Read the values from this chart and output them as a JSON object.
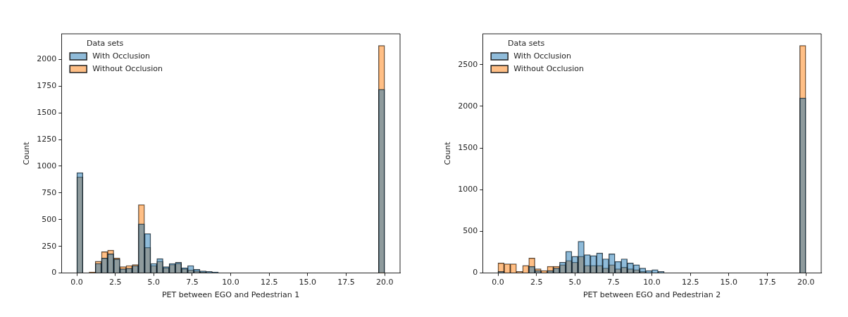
{
  "chart_data": [
    {
      "type": "histogram",
      "xlabel": "PET between EGO and Pedestrian 1",
      "ylabel": "Count",
      "legend_title": "Data sets",
      "legend": "top left",
      "grid": false,
      "bins": [
        0,
        0.4,
        0.8,
        1.2,
        1.6,
        2.0,
        2.4,
        2.8,
        3.2,
        3.6,
        4.0,
        4.4,
        4.8,
        5.2,
        5.6,
        6.0,
        6.4,
        6.8,
        7.2,
        7.6,
        8.0,
        8.4,
        8.8,
        9.2,
        9.6,
        10.0,
        10.4,
        10.8,
        11.2,
        11.6,
        12.0,
        12.4,
        12.8,
        13.2,
        13.6,
        14.0,
        14.4,
        14.8,
        15.2,
        15.6,
        16.0,
        16.4,
        16.8,
        17.2,
        17.6,
        18.0,
        18.4,
        18.8,
        19.2,
        19.6,
        20.0
      ],
      "series": [
        {
          "name": "With Occlusion",
          "color": "#1f77b4",
          "values": [
            940,
            0,
            0,
            90,
            140,
            180,
            130,
            40,
            45,
            70,
            460,
            370,
            90,
            135,
            60,
            90,
            100,
            50,
            70,
            35,
            20,
            15,
            10,
            0,
            0,
            0,
            0,
            0,
            0,
            0,
            0,
            0,
            0,
            0,
            0,
            0,
            0,
            0,
            0,
            0,
            0,
            0,
            0,
            0,
            0,
            0,
            0,
            0,
            0,
            1720
          ]
        },
        {
          "name": "Without Occlusion",
          "color": "#ff7f0e",
          "values": [
            900,
            0,
            10,
            110,
            200,
            215,
            140,
            60,
            70,
            80,
            640,
            240,
            70,
            110,
            50,
            80,
            90,
            40,
            30,
            20,
            10,
            0,
            0,
            0,
            0,
            0,
            0,
            0,
            0,
            0,
            0,
            0,
            0,
            0,
            0,
            0,
            0,
            0,
            0,
            0,
            0,
            0,
            0,
            0,
            0,
            0,
            0,
            0,
            0,
            2130
          ]
        }
      ],
      "xlim": [
        -1,
        21
      ],
      "xticks": [
        {
          "value": 0,
          "label": "0.0"
        },
        {
          "value": 2.5,
          "label": "2.5"
        },
        {
          "value": 5,
          "label": "5.0"
        },
        {
          "value": 7.5,
          "label": "7.5"
        },
        {
          "value": 10,
          "label": "10.0"
        },
        {
          "value": 12.5,
          "label": "12.5"
        },
        {
          "value": 15,
          "label": "15.0"
        },
        {
          "value": 17.5,
          "label": "17.5"
        },
        {
          "value": 20,
          "label": "20.0"
        }
      ],
      "ylim": [
        0,
        2240
      ],
      "yticks": [
        0,
        250,
        500,
        750,
        1000,
        1250,
        1500,
        1750,
        2000
      ]
    },
    {
      "type": "histogram",
      "xlabel": "PET between EGO and Pedestrian 2",
      "ylabel": "Count",
      "legend_title": "Data sets",
      "legend": "top left",
      "grid": false,
      "bins": [
        0,
        0.4,
        0.8,
        1.2,
        1.6,
        2.0,
        2.4,
        2.8,
        3.2,
        3.6,
        4.0,
        4.4,
        4.8,
        5.2,
        5.6,
        6.0,
        6.4,
        6.8,
        7.2,
        7.6,
        8.0,
        8.4,
        8.8,
        9.2,
        9.6,
        10.0,
        10.4,
        10.8,
        11.2,
        11.6,
        12.0,
        12.4,
        12.8,
        13.2,
        13.6,
        14.0,
        14.4,
        14.8,
        15.2,
        15.6,
        16.0,
        16.4,
        16.8,
        17.2,
        17.6,
        18.0,
        18.4,
        18.8,
        19.2,
        19.6,
        20.0
      ],
      "series": [
        {
          "name": "With Occlusion",
          "color": "#1f77b4",
          "values": [
            20,
            null,
            null,
            0,
            null,
            80,
            30,
            null,
            30,
            60,
            130,
            260,
            200,
            380,
            220,
            210,
            240,
            170,
            230,
            140,
            170,
            120,
            100,
            60,
            30,
            40,
            20,
            0,
            0,
            0,
            0,
            0,
            0,
            0,
            0,
            0,
            0,
            0,
            0,
            0,
            0,
            0,
            0,
            0,
            0,
            0,
            0,
            0,
            0,
            2100
          ]
        },
        {
          "name": "Without Occlusion",
          "color": "#ff7f0e",
          "values": [
            120,
            110,
            110,
            20,
            90,
            180,
            50,
            30,
            80,
            80,
            100,
            150,
            130,
            200,
            90,
            90,
            90,
            60,
            100,
            50,
            70,
            50,
            40,
            20,
            0,
            0,
            0,
            0,
            0,
            0,
            0,
            0,
            0,
            0,
            0,
            0,
            0,
            0,
            0,
            0,
            0,
            0,
            0,
            0,
            0,
            0,
            0,
            0,
            0,
            2730
          ]
        }
      ],
      "xlim": [
        -1,
        21
      ],
      "xticks": [
        {
          "value": 0,
          "label": "0.0"
        },
        {
          "value": 2.5,
          "label": "2.5"
        },
        {
          "value": 5,
          "label": "5.0"
        },
        {
          "value": 7.5,
          "label": "7.5"
        },
        {
          "value": 10,
          "label": "10.0"
        },
        {
          "value": 12.5,
          "label": "12.5"
        },
        {
          "value": 15,
          "label": "15.0"
        },
        {
          "value": 17.5,
          "label": "17.5"
        },
        {
          "value": 20,
          "label": "20.0"
        }
      ],
      "ylim": [
        0,
        2870
      ],
      "yticks": [
        0,
        500,
        1000,
        1500,
        2000,
        2500
      ]
    }
  ]
}
